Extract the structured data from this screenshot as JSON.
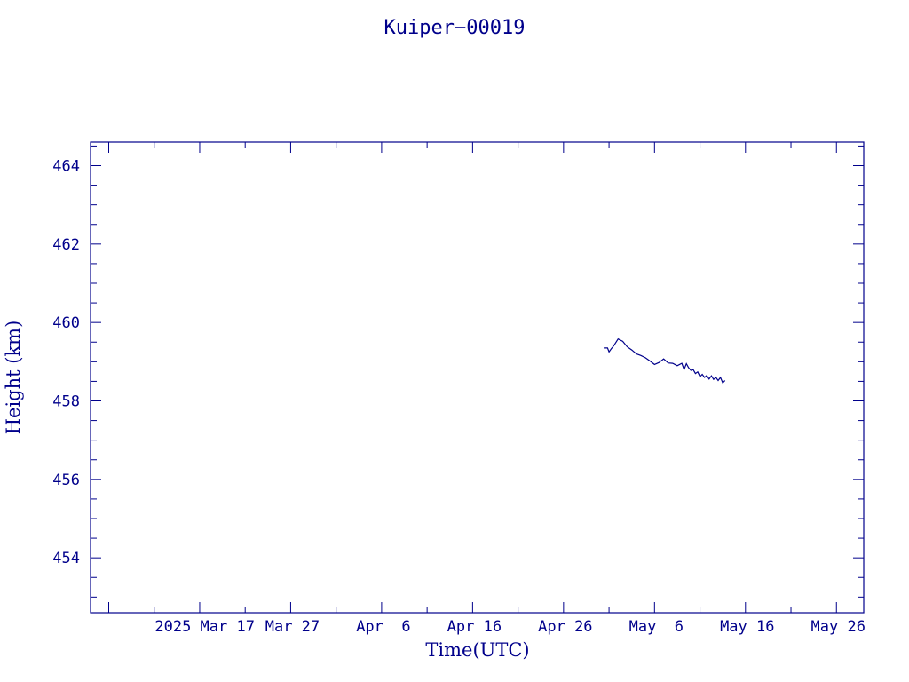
{
  "chart_data": {
    "type": "line",
    "title": "Kuiper−00019",
    "xlabel": "Time(UTC)",
    "ylabel": "Height (km)",
    "color": "#00008b",
    "xlim": [
      "2025-03-05",
      "2025-05-29"
    ],
    "ylim": [
      452.6,
      464.6
    ],
    "x_ticks": [
      {
        "date": "2025-03-17",
        "label": "2025 Mar 17"
      },
      {
        "date": "2025-03-27",
        "label": "Mar 27"
      },
      {
        "date": "2025-04-06",
        "label": "Apr  6"
      },
      {
        "date": "2025-04-16",
        "label": "Apr 16"
      },
      {
        "date": "2025-04-26",
        "label": "Apr 26"
      },
      {
        "date": "2025-05-06",
        "label": "May  6"
      },
      {
        "date": "2025-05-16",
        "label": "May 16"
      },
      {
        "date": "2025-05-26",
        "label": "May 26"
      }
    ],
    "y_ticks": [
      454,
      456,
      458,
      460,
      462,
      464
    ],
    "grid": false,
    "series": [
      {
        "x": [
          "2025-04-30 10:00",
          "2025-04-30 20:00",
          "2025-05-01 00:00",
          "2025-05-01 06:00",
          "2025-05-01 12:00",
          "2025-05-02 00:00",
          "2025-05-02 12:00",
          "2025-05-03 00:00",
          "2025-05-03 12:00",
          "2025-05-04 00:00",
          "2025-05-04 12:00",
          "2025-05-05 00:00",
          "2025-05-05 12:00",
          "2025-05-06 00:00",
          "2025-05-06 12:00",
          "2025-05-07 00:00",
          "2025-05-07 12:00",
          "2025-05-08 00:00",
          "2025-05-08 12:00",
          "2025-05-09 00:00",
          "2025-05-09 06:00",
          "2025-05-09 12:00",
          "2025-05-09 18:00",
          "2025-05-10 00:00",
          "2025-05-10 06:00",
          "2025-05-10 12:00",
          "2025-05-10 18:00",
          "2025-05-11 00:00",
          "2025-05-11 06:00",
          "2025-05-11 12:00",
          "2025-05-11 18:00",
          "2025-05-12 00:00",
          "2025-05-12 06:00",
          "2025-05-12 12:00",
          "2025-05-12 18:00",
          "2025-05-13 00:00",
          "2025-05-13 06:00",
          "2025-05-13 12:00",
          "2025-05-13 18:00"
        ],
        "y": [
          459.35,
          459.35,
          459.25,
          459.33,
          459.4,
          459.58,
          459.52,
          459.38,
          459.3,
          459.2,
          459.16,
          459.1,
          459.02,
          458.93,
          458.98,
          459.07,
          458.97,
          458.96,
          458.9,
          458.96,
          458.8,
          458.95,
          458.85,
          458.78,
          458.8,
          458.7,
          458.74,
          458.62,
          458.68,
          458.6,
          458.65,
          458.56,
          458.64,
          458.55,
          458.6,
          458.52,
          458.6,
          458.46,
          458.52
        ]
      }
    ]
  }
}
